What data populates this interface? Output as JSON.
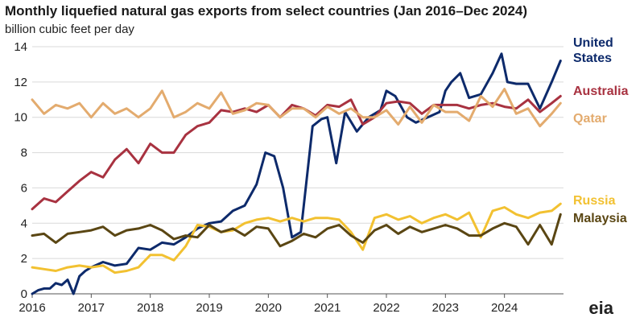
{
  "header": {
    "title": "Monthly liquefied natural gas exports from select countries (Jan 2016–Dec 2024)",
    "subtitle": "billion cubic feet per day"
  },
  "logo": {
    "text": "eia"
  },
  "chart_data": {
    "type": "line",
    "title": "Monthly liquefied natural gas exports from select countries (Jan 2016–Dec 2024)",
    "ylabel": "billion cubic feet per day",
    "xlabel": "",
    "xlim": [
      2016,
      2025
    ],
    "ylim": [
      0,
      14
    ],
    "yticks": [
      0,
      2,
      4,
      6,
      8,
      10,
      12,
      14
    ],
    "xticks": [
      2016,
      2017,
      2018,
      2019,
      2020,
      2021,
      2022,
      2023,
      2024
    ],
    "grid": "horizontal",
    "legend": "right (direct labels)",
    "series": [
      {
        "name": "United States",
        "color": "#0d2a6b",
        "label_lines": [
          "United",
          "States"
        ],
        "x": [
          2016.0,
          2016.1,
          2016.2,
          2016.3,
          2016.4,
          2016.5,
          2016.6,
          2016.7,
          2016.8,
          2016.9,
          2017.0,
          2017.2,
          2017.4,
          2017.6,
          2017.8,
          2018.0,
          2018.2,
          2018.4,
          2018.6,
          2018.8,
          2019.0,
          2019.2,
          2019.4,
          2019.6,
          2019.8,
          2019.95,
          2020.1,
          2020.25,
          2020.4,
          2020.55,
          2020.75,
          2020.9,
          2021.0,
          2021.15,
          2021.3,
          2021.5,
          2021.7,
          2021.9,
          2022.0,
          2022.15,
          2022.35,
          2022.5,
          2022.7,
          2022.9,
          2023.0,
          2023.1,
          2023.25,
          2023.4,
          2023.6,
          2023.8,
          2023.95,
          2024.05,
          2024.2,
          2024.4,
          2024.6,
          2024.8,
          2024.95
        ],
        "y": [
          0.0,
          0.2,
          0.3,
          0.3,
          0.6,
          0.5,
          0.8,
          0.0,
          1.0,
          1.3,
          1.5,
          1.8,
          1.6,
          1.7,
          2.6,
          2.5,
          2.9,
          2.8,
          3.2,
          3.7,
          4.0,
          4.1,
          4.7,
          5.0,
          6.2,
          8.0,
          7.8,
          6.0,
          3.2,
          3.5,
          9.5,
          9.9,
          10.0,
          7.4,
          10.3,
          9.2,
          10.0,
          10.4,
          11.5,
          11.2,
          10.0,
          9.7,
          10.0,
          10.3,
          11.5,
          12.0,
          12.5,
          11.1,
          11.3,
          12.5,
          13.6,
          12.0,
          11.9,
          11.9,
          10.5,
          12.0,
          13.2
        ]
      },
      {
        "name": "Australia",
        "color": "#a83240",
        "label_lines": [
          "Australia"
        ],
        "x": [
          2016.0,
          2016.2,
          2016.4,
          2016.6,
          2016.8,
          2017.0,
          2017.2,
          2017.4,
          2017.6,
          2017.8,
          2018.0,
          2018.2,
          2018.4,
          2018.6,
          2018.8,
          2019.0,
          2019.2,
          2019.4,
          2019.6,
          2019.8,
          2020.0,
          2020.2,
          2020.4,
          2020.6,
          2020.8,
          2021.0,
          2021.2,
          2021.4,
          2021.6,
          2021.8,
          2022.0,
          2022.2,
          2022.4,
          2022.6,
          2022.8,
          2023.0,
          2023.2,
          2023.4,
          2023.6,
          2023.8,
          2024.0,
          2024.2,
          2024.4,
          2024.6,
          2024.8,
          2024.95
        ],
        "y": [
          4.8,
          5.4,
          5.2,
          5.8,
          6.4,
          6.9,
          6.6,
          7.6,
          8.2,
          7.4,
          8.5,
          8.0,
          8.0,
          9.0,
          9.5,
          9.7,
          10.4,
          10.3,
          10.5,
          10.3,
          10.7,
          10.0,
          10.7,
          10.5,
          10.1,
          10.7,
          10.6,
          11.0,
          9.6,
          10.0,
          10.8,
          10.9,
          10.8,
          10.2,
          10.7,
          10.7,
          10.7,
          10.5,
          10.7,
          10.8,
          10.6,
          10.5,
          11.0,
          10.3,
          10.8,
          11.2
        ]
      },
      {
        "name": "Qatar",
        "color": "#e3ab6e",
        "label_lines": [
          "Qatar"
        ],
        "x": [
          2016.0,
          2016.2,
          2016.4,
          2016.6,
          2016.8,
          2017.0,
          2017.2,
          2017.4,
          2017.6,
          2017.8,
          2018.0,
          2018.2,
          2018.4,
          2018.6,
          2018.8,
          2019.0,
          2019.2,
          2019.4,
          2019.6,
          2019.8,
          2020.0,
          2020.2,
          2020.4,
          2020.6,
          2020.8,
          2021.0,
          2021.2,
          2021.4,
          2021.6,
          2021.8,
          2022.0,
          2022.2,
          2022.4,
          2022.6,
          2022.8,
          2023.0,
          2023.2,
          2023.4,
          2023.6,
          2023.8,
          2024.0,
          2024.2,
          2024.4,
          2024.6,
          2024.8,
          2024.95
        ],
        "y": [
          11.0,
          10.2,
          10.7,
          10.5,
          10.8,
          10.0,
          10.8,
          10.2,
          10.5,
          10.0,
          10.5,
          11.5,
          10.0,
          10.3,
          10.8,
          10.5,
          11.4,
          10.2,
          10.4,
          10.8,
          10.7,
          10.0,
          10.5,
          10.5,
          10.0,
          10.6,
          10.2,
          10.5,
          10.0,
          10.0,
          10.4,
          9.6,
          10.6,
          9.7,
          10.7,
          10.3,
          10.3,
          9.8,
          11.2,
          10.6,
          11.6,
          10.2,
          10.5,
          9.5,
          10.2,
          10.8
        ]
      },
      {
        "name": "Russia",
        "color": "#f2c131",
        "label_lines": [
          "Russia"
        ],
        "x": [
          2016.0,
          2016.2,
          2016.4,
          2016.6,
          2016.8,
          2017.0,
          2017.2,
          2017.4,
          2017.6,
          2017.8,
          2018.0,
          2018.2,
          2018.4,
          2018.6,
          2018.8,
          2019.0,
          2019.2,
          2019.4,
          2019.6,
          2019.8,
          2020.0,
          2020.2,
          2020.4,
          2020.6,
          2020.8,
          2021.0,
          2021.2,
          2021.4,
          2021.6,
          2021.8,
          2022.0,
          2022.2,
          2022.4,
          2022.6,
          2022.8,
          2023.0,
          2023.2,
          2023.4,
          2023.6,
          2023.8,
          2024.0,
          2024.2,
          2024.4,
          2024.6,
          2024.8,
          2024.95
        ],
        "y": [
          1.5,
          1.4,
          1.3,
          1.5,
          1.6,
          1.5,
          1.6,
          1.2,
          1.3,
          1.5,
          2.2,
          2.2,
          1.9,
          2.7,
          3.9,
          3.8,
          3.5,
          3.6,
          4.0,
          4.2,
          4.3,
          4.1,
          4.3,
          4.1,
          4.3,
          4.3,
          4.2,
          3.5,
          2.5,
          4.3,
          4.5,
          4.2,
          4.4,
          4.0,
          4.3,
          4.5,
          4.2,
          4.6,
          3.2,
          4.7,
          4.9,
          4.5,
          4.3,
          4.6,
          4.7,
          5.1
        ]
      },
      {
        "name": "Malaysia",
        "color": "#5a4613",
        "label_lines": [
          "Malaysia"
        ],
        "x": [
          2016.0,
          2016.2,
          2016.4,
          2016.6,
          2016.8,
          2017.0,
          2017.2,
          2017.4,
          2017.6,
          2017.8,
          2018.0,
          2018.2,
          2018.4,
          2018.6,
          2018.8,
          2019.0,
          2019.2,
          2019.4,
          2019.6,
          2019.8,
          2020.0,
          2020.2,
          2020.4,
          2020.6,
          2020.8,
          2021.0,
          2021.2,
          2021.4,
          2021.6,
          2021.8,
          2022.0,
          2022.2,
          2022.4,
          2022.6,
          2022.8,
          2023.0,
          2023.2,
          2023.4,
          2023.6,
          2023.8,
          2024.0,
          2024.2,
          2024.4,
          2024.6,
          2024.8,
          2024.95
        ],
        "y": [
          3.3,
          3.4,
          2.9,
          3.4,
          3.5,
          3.6,
          3.8,
          3.3,
          3.6,
          3.7,
          3.9,
          3.6,
          3.1,
          3.3,
          3.2,
          3.9,
          3.5,
          3.7,
          3.3,
          3.8,
          3.7,
          2.7,
          3.0,
          3.4,
          3.2,
          3.7,
          3.9,
          3.3,
          2.9,
          3.6,
          3.9,
          3.4,
          3.8,
          3.5,
          3.7,
          3.9,
          3.7,
          3.3,
          3.3,
          3.7,
          4.0,
          3.8,
          2.8,
          3.9,
          2.8,
          4.5
        ]
      }
    ]
  }
}
